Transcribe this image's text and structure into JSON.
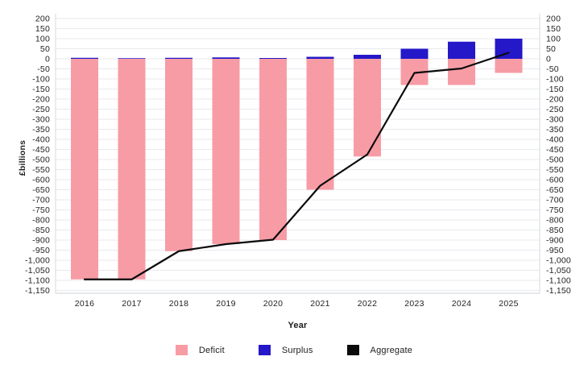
{
  "chart": {
    "y_axis_title": "£billions",
    "x_axis_title": "Year"
  },
  "chart_data": {
    "type": "combo",
    "title": "",
    "categories": [
      "2016",
      "2017",
      "2018",
      "2019",
      "2020",
      "2021",
      "2022",
      "2023",
      "2024",
      "2025"
    ],
    "series": [
      {
        "name": "Deficit",
        "type": "bar",
        "color": "#F79CA5",
        "values": [
          -1095,
          -1095,
          -955,
          -920,
          -900,
          -650,
          -485,
          -130,
          -130,
          -70
        ]
      },
      {
        "name": "Surplus",
        "type": "bar",
        "color": "#2418C8",
        "values": [
          5,
          3,
          5,
          7,
          4,
          10,
          20,
          50,
          85,
          100
        ]
      },
      {
        "name": "Aggregate",
        "type": "line",
        "color": "#0b0b0b",
        "values": [
          -1095,
          -1095,
          -955,
          -920,
          -898,
          -630,
          -475,
          -70,
          -48,
          30
        ]
      }
    ],
    "xlabel": "Year",
    "ylabel": "£billions",
    "ylim": [
      -1150,
      200
    ],
    "ytick_step": 50,
    "grid": true,
    "dual_y_axis": true,
    "legend_position": "bottom",
    "background": "#ffffff",
    "gridline_color": "#e8eaef",
    "axis_line_color": "#d6d9de",
    "tick_label_color": "#1f1f1f"
  }
}
